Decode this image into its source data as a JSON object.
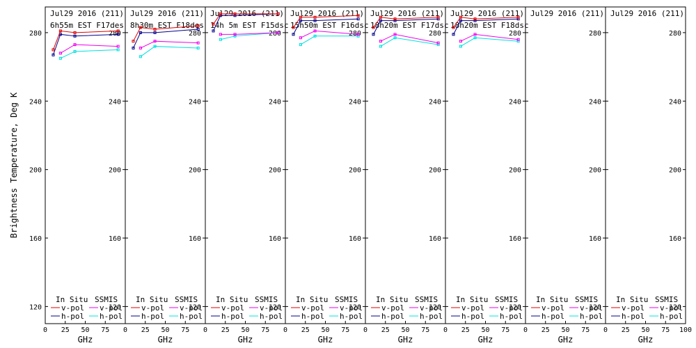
{
  "chart_data": {
    "type": "line",
    "ylabel": "Brightness Temperature, Deg K",
    "xlabel": "GHz",
    "ylim": [
      110,
      295
    ],
    "xlim": [
      0,
      100
    ],
    "y_ticks": [
      120,
      160,
      200,
      240,
      280
    ],
    "x_ticks": [
      0,
      25,
      50,
      75,
      100
    ],
    "x_tick_labels": [
      "0",
      "25",
      "50",
      "75",
      "100"
    ],
    "legend": {
      "in_situ_header": "In Situ",
      "ssmis_header": "SSMIS",
      "vpol": "v-pol",
      "hpol": "h-pol"
    },
    "colors": {
      "insitu_v": "#e00000",
      "insitu_h": "#00008b",
      "ssmis_v": "#ee00ee",
      "ssmis_h": "#00e0e0"
    },
    "panels": [
      {
        "title1": "Jul29 2016 (211)",
        "title2": "6h55m EST F17des",
        "series": {
          "insitu_v": {
            "x": [
              10,
              19,
              37,
              91
            ],
            "y": [
              270,
              281,
              280,
              281
            ]
          },
          "insitu_h": {
            "x": [
              10,
              19,
              37,
              91
            ],
            "y": [
              267,
              279,
              278,
              279
            ]
          },
          "ssmis_v": {
            "x": [
              19,
              37,
              91
            ],
            "y": [
              268,
              273,
              272
            ]
          },
          "ssmis_h": {
            "x": [
              19,
              37,
              91
            ],
            "y": [
              265,
              269,
              270
            ]
          }
        }
      },
      {
        "title1": "Jul29 2016 (211)",
        "title2": "8h30m EST F18des",
        "series": {
          "insitu_v": {
            "x": [
              10,
              19,
              37,
              91
            ],
            "y": [
              275,
              283,
              282,
              284
            ]
          },
          "insitu_h": {
            "x": [
              10,
              19,
              37,
              91
            ],
            "y": [
              271,
              280,
              280,
              282
            ]
          },
          "ssmis_v": {
            "x": [
              19,
              37,
              91
            ],
            "y": [
              271,
              275,
              274
            ]
          },
          "ssmis_h": {
            "x": [
              19,
              37,
              91
            ],
            "y": [
              266,
              272,
              271
            ]
          }
        }
      },
      {
        "title1": "Jul29 2016 (211)",
        "title2": "14h 5m EST F15dsc",
        "series": {
          "insitu_v": {
            "x": [
              10,
              19,
              37,
              91
            ],
            "y": [
              285,
              291,
              291,
              291
            ]
          },
          "insitu_h": {
            "x": [
              10,
              19,
              37,
              91
            ],
            "y": [
              281,
              290,
              290,
              291
            ]
          },
          "ssmis_v": {
            "x": [
              19,
              37,
              91
            ],
            "y": [
              279,
              279,
              280
            ]
          },
          "ssmis_h": {
            "x": [
              19,
              37,
              91
            ],
            "y": [
              276,
              278,
              280
            ]
          }
        }
      },
      {
        "title1": "Jul29 2016 (211)",
        "title2": "15h50m EST F16dsc",
        "series": {
          "insitu_v": {
            "x": [
              10,
              19,
              37,
              91
            ],
            "y": [
              283,
              289,
              289,
              290
            ]
          },
          "insitu_h": {
            "x": [
              10,
              19,
              37,
              91
            ],
            "y": [
              279,
              287,
              287,
              288
            ]
          },
          "ssmis_v": {
            "x": [
              19,
              37,
              91
            ],
            "y": [
              277,
              281,
              279
            ]
          },
          "ssmis_h": {
            "x": [
              19,
              37,
              91
            ],
            "y": [
              273,
              278,
              278
            ]
          }
        }
      },
      {
        "title1": "Jul29 2016 (211)",
        "title2": "18h20m EST F17dsc",
        "series": {
          "insitu_v": {
            "x": [
              10,
              19,
              37,
              91
            ],
            "y": [
              283,
              289,
              288,
              289
            ]
          },
          "insitu_h": {
            "x": [
              10,
              19,
              37,
              91
            ],
            "y": [
              279,
              287,
              287,
              288
            ]
          },
          "ssmis_v": {
            "x": [
              19,
              37,
              91
            ],
            "y": [
              275,
              279,
              274
            ]
          },
          "ssmis_h": {
            "x": [
              19,
              37,
              91
            ],
            "y": [
              272,
              277,
              273
            ]
          }
        }
      },
      {
        "title1": "Jul29 2016 (211)",
        "title2": "18h20m EST F18dsc",
        "series": {
          "insitu_v": {
            "x": [
              10,
              19,
              37,
              91
            ],
            "y": [
              283,
              289,
              288,
              289
            ]
          },
          "insitu_h": {
            "x": [
              10,
              19,
              37,
              91
            ],
            "y": [
              279,
              287,
              287,
              288
            ]
          },
          "ssmis_v": {
            "x": [
              19,
              37,
              91
            ],
            "y": [
              275,
              279,
              276
            ]
          },
          "ssmis_h": {
            "x": [
              19,
              37,
              91
            ],
            "y": [
              272,
              277,
              275
            ]
          }
        }
      },
      {
        "title1": "Jul29 2016 (211)",
        "title2": "",
        "series": {}
      },
      {
        "title1": "Jul29 2016 (211)",
        "title2": "",
        "series": {}
      }
    ]
  }
}
